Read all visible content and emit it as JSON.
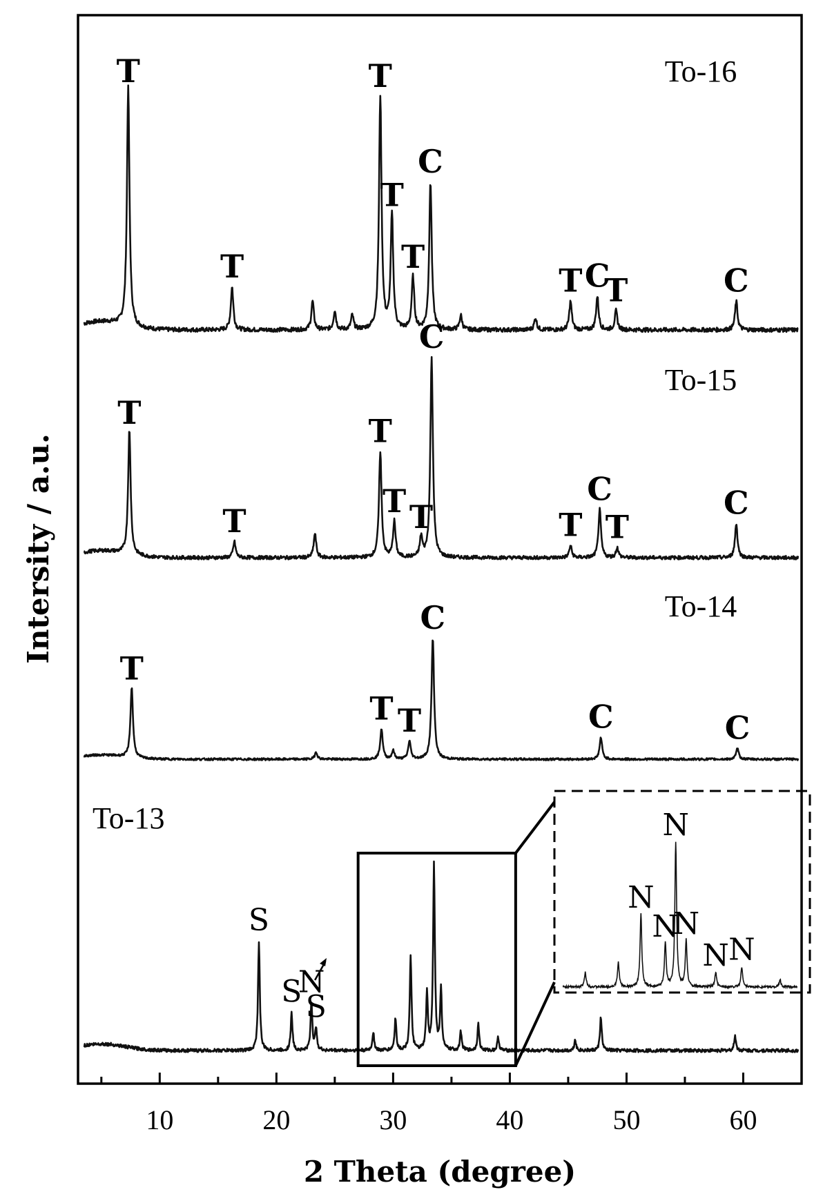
{
  "chart_data": {
    "type": "line",
    "xlabel": "2 Theta (degree)",
    "ylabel": "Intersity / a.u.",
    "xlim": [
      3,
      65
    ],
    "x_ticks": [
      10,
      20,
      30,
      40,
      50,
      60
    ],
    "y_ticks_shown": false,
    "grid": false,
    "legend": "none",
    "series": [
      {
        "name": "To-16",
        "baseline": 1.0,
        "peaks": [
          {
            "x": 7.3,
            "y": 1.0,
            "label": "T"
          },
          {
            "x": 16.2,
            "y": 0.18,
            "label": "T"
          },
          {
            "x": 23.1,
            "y": 0.12
          },
          {
            "x": 25.0,
            "y": 0.08
          },
          {
            "x": 26.5,
            "y": 0.06
          },
          {
            "x": 28.9,
            "y": 0.98,
            "label": "T"
          },
          {
            "x": 29.9,
            "y": 0.48,
            "label": "T"
          },
          {
            "x": 31.7,
            "y": 0.22,
            "label": "T"
          },
          {
            "x": 33.2,
            "y": 0.62,
            "label": "C"
          },
          {
            "x": 35.8,
            "y": 0.06
          },
          {
            "x": 42.2,
            "y": 0.05
          },
          {
            "x": 45.2,
            "y": 0.12,
            "label": "T"
          },
          {
            "x": 47.5,
            "y": 0.14,
            "label": "C"
          },
          {
            "x": 49.1,
            "y": 0.08,
            "label": "T"
          },
          {
            "x": 59.4,
            "y": 0.12,
            "label": "C"
          }
        ]
      },
      {
        "name": "To-15",
        "baseline": 1.0,
        "peaks": [
          {
            "x": 7.4,
            "y": 0.62,
            "label": "T"
          },
          {
            "x": 16.4,
            "y": 0.08,
            "label": "T"
          },
          {
            "x": 23.3,
            "y": 0.12
          },
          {
            "x": 28.9,
            "y": 0.53,
            "label": "T"
          },
          {
            "x": 30.1,
            "y": 0.18,
            "label": "T"
          },
          {
            "x": 32.4,
            "y": 0.1,
            "label": "T"
          },
          {
            "x": 33.3,
            "y": 1.0,
            "label": "C"
          },
          {
            "x": 45.2,
            "y": 0.06,
            "label": "T"
          },
          {
            "x": 47.7,
            "y": 0.24,
            "label": "C"
          },
          {
            "x": 49.2,
            "y": 0.05,
            "label": "T"
          },
          {
            "x": 59.4,
            "y": 0.17,
            "label": "C"
          }
        ]
      },
      {
        "name": "To-14",
        "baseline": 1.0,
        "peaks": [
          {
            "x": 7.6,
            "y": 0.58,
            "label": "T"
          },
          {
            "x": 23.4,
            "y": 0.06
          },
          {
            "x": 29.0,
            "y": 0.25,
            "label": "T"
          },
          {
            "x": 30.0,
            "y": 0.07
          },
          {
            "x": 31.4,
            "y": 0.15,
            "label": "T"
          },
          {
            "x": 33.4,
            "y": 1.0,
            "label": "C"
          },
          {
            "x": 47.8,
            "y": 0.18,
            "label": "C"
          },
          {
            "x": 59.5,
            "y": 0.09,
            "label": "C"
          }
        ]
      },
      {
        "name": "To-13",
        "baseline": 1.0,
        "peaks": [
          {
            "x": 18.5,
            "y": 0.58,
            "label": "S"
          },
          {
            "x": 21.3,
            "y": 0.2,
            "label": "S"
          },
          {
            "x": 23.0,
            "y": 0.26,
            "label": "N"
          },
          {
            "x": 23.4,
            "y": 0.12,
            "label": "S"
          },
          {
            "x": 28.3,
            "y": 0.1
          },
          {
            "x": 30.2,
            "y": 0.17
          },
          {
            "x": 31.5,
            "y": 0.5
          },
          {
            "x": 32.9,
            "y": 0.3
          },
          {
            "x": 33.5,
            "y": 1.0
          },
          {
            "x": 34.1,
            "y": 0.32
          },
          {
            "x": 35.8,
            "y": 0.1
          },
          {
            "x": 37.3,
            "y": 0.14
          },
          {
            "x": 39.0,
            "y": 0.07
          },
          {
            "x": 45.6,
            "y": 0.06
          },
          {
            "x": 47.8,
            "y": 0.18
          },
          {
            "x": 59.3,
            "y": 0.08
          }
        ]
      }
    ],
    "inset": {
      "range": [
        27,
        40.5
      ],
      "peaks": [
        {
          "x": 28.3,
          "y": 0.1
        },
        {
          "x": 30.2,
          "y": 0.17
        },
        {
          "x": 31.5,
          "y": 0.5,
          "label": "N"
        },
        {
          "x": 32.9,
          "y": 0.3,
          "label": "N"
        },
        {
          "x": 33.5,
          "y": 1.0,
          "label": "N"
        },
        {
          "x": 34.1,
          "y": 0.32,
          "label": "N"
        },
        {
          "x": 35.8,
          "y": 0.1,
          "label": "N"
        },
        {
          "x": 37.3,
          "y": 0.14,
          "label": "N"
        },
        {
          "x": 39.5,
          "y": 0.05
        }
      ]
    }
  }
}
